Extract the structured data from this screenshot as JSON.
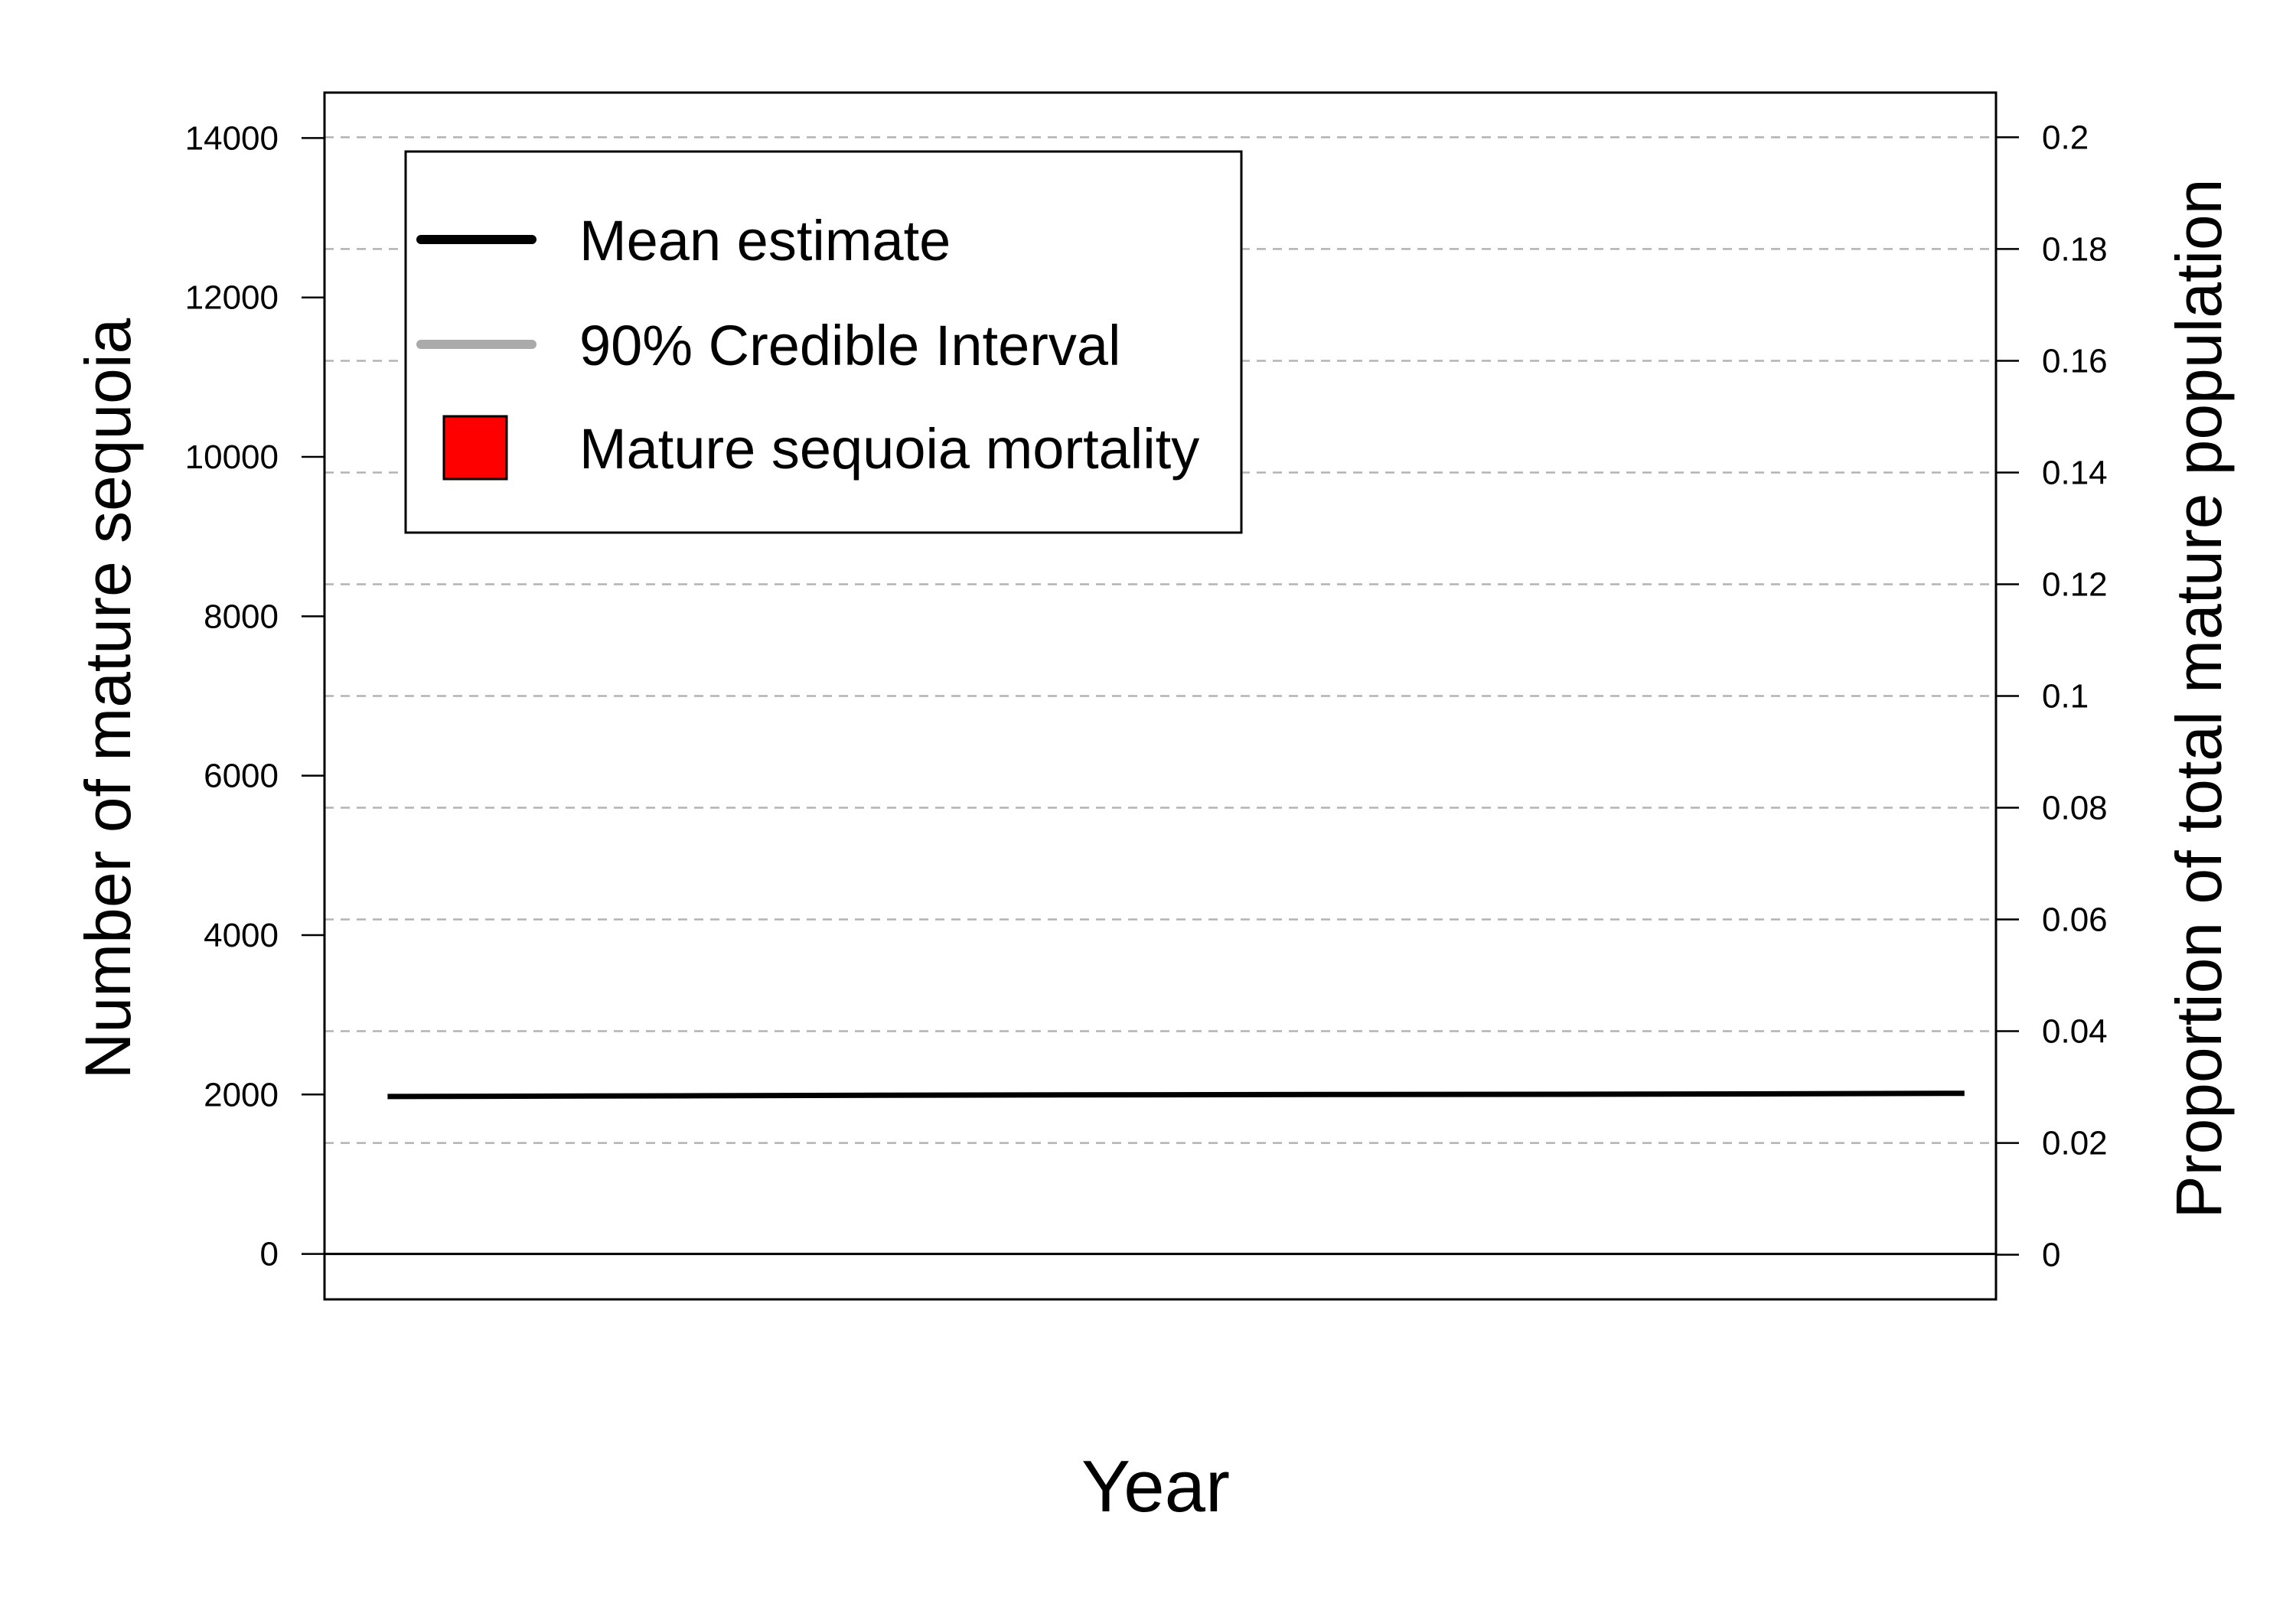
{
  "chart_data": {
    "type": "line",
    "title": "",
    "xlabel": "Year",
    "ylabel": "Number of mature sequoia",
    "y2label": "Proportion of total mature population",
    "ylim": [
      -570,
      14570
    ],
    "y_ticks": [
      "0",
      "2000",
      "4000",
      "6000",
      "8000",
      "10000",
      "12000",
      "14000"
    ],
    "y_tick_values": [
      0,
      2000,
      4000,
      6000,
      8000,
      10000,
      12000,
      14000
    ],
    "y2lim": [
      -0.008,
      0.208
    ],
    "y2_ticks": [
      "0",
      "0.02",
      "0.04",
      "0.06",
      "0.08",
      "0.1",
      "0.12",
      "0.14",
      "0.16",
      "0.18",
      "0.2"
    ],
    "y2_tick_values": [
      0,
      0.02,
      0.04,
      0.06,
      0.08,
      0.1,
      0.12,
      0.14,
      0.16,
      0.18,
      0.2
    ],
    "grid": "dashed horizontal lines at right-axis ticks",
    "legend_position": "top-left",
    "legend": [
      {
        "label": "Mean estimate",
        "symbol": "line",
        "color": "#000000"
      },
      {
        "label": "90% Credible Interval",
        "symbol": "line",
        "color": "#aaaaaa"
      },
      {
        "label": "Mature sequoia mortality",
        "symbol": "square",
        "color": "#ff0000"
      }
    ],
    "series": [
      {
        "role": "mean",
        "color": "#000000",
        "x": [
          0,
          1,
          2,
          3,
          4,
          5
        ],
        "y": [
          1975,
          1985,
          1995,
          2000,
          2005,
          2015
        ]
      }
    ],
    "zero_line": 0,
    "xlim": [
      -0.2,
      5.1
    ]
  }
}
